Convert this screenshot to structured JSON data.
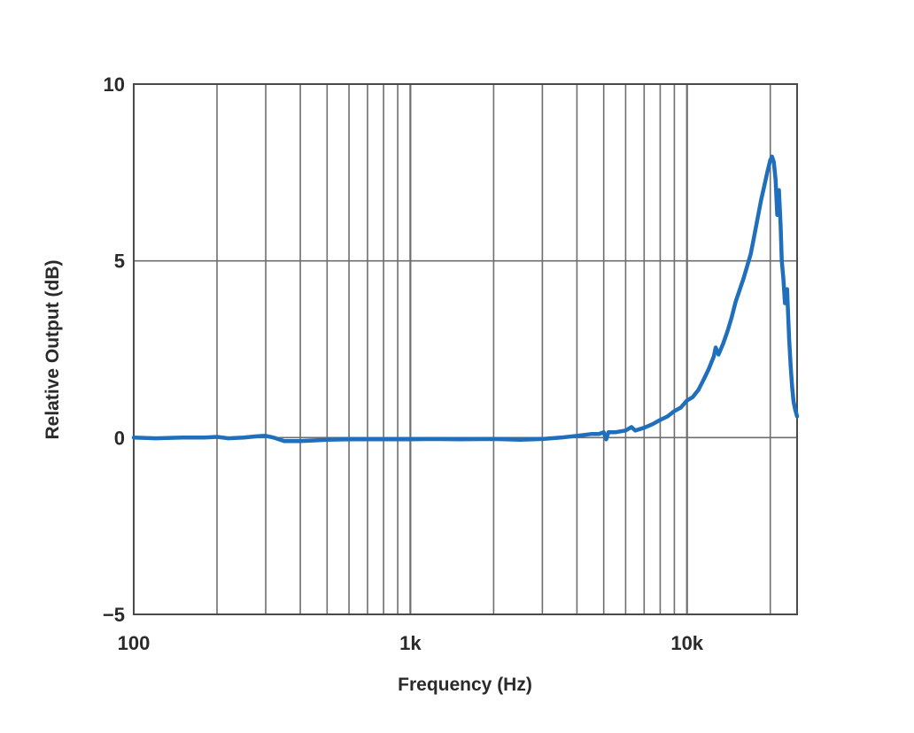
{
  "chart_data": {
    "type": "line",
    "title": "",
    "xlabel": "Frequency (Hz)",
    "ylabel": "Relative Output (dB)",
    "xscale": "log",
    "xlim": [
      100,
      25000
    ],
    "ylim": [
      -5,
      10
    ],
    "grid": true,
    "legend": "none",
    "x_ticks": [
      {
        "value": 100,
        "label": "100"
      },
      {
        "value": 1000,
        "label": "1k"
      },
      {
        "value": 10000,
        "label": "10k"
      }
    ],
    "y_ticks": [
      {
        "value": 10,
        "label": "10"
      },
      {
        "value": 5,
        "label": "5"
      },
      {
        "value": 0,
        "label": "0"
      },
      {
        "value": -5,
        "label": "−5"
      }
    ],
    "colors": {
      "series": "#1f6fbd",
      "grid": "#6e6e6e",
      "frame": "#4a4a4a"
    },
    "series": [
      {
        "x": [
          100,
          120,
          150,
          180,
          200,
          220,
          250,
          280,
          300,
          320,
          350,
          400,
          450,
          500,
          600,
          700,
          800,
          900,
          1000,
          1200,
          1500,
          2000,
          2500,
          3000,
          3500,
          4000,
          4500,
          4800,
          5000,
          5100,
          5200,
          5500,
          6000,
          6300,
          6500,
          7000,
          7500,
          8000,
          8500,
          9000,
          9500,
          10000,
          10500,
          11000,
          11500,
          12000,
          12500,
          12700,
          13000,
          13500,
          14000,
          14500,
          15000,
          16000,
          16500,
          17000,
          17500,
          18000,
          18500,
          19000,
          19500,
          20000,
          20300,
          20600,
          20900,
          21200,
          21500,
          21800,
          22000,
          22300,
          22600,
          23000,
          23400,
          23700,
          24000,
          24300,
          24600,
          25000
        ],
        "y": [
          0.0,
          -0.02,
          0.0,
          0.0,
          0.02,
          -0.02,
          0.0,
          0.04,
          0.05,
          0.0,
          -0.1,
          -0.1,
          -0.08,
          -0.06,
          -0.05,
          -0.05,
          -0.05,
          -0.05,
          -0.05,
          -0.04,
          -0.05,
          -0.04,
          -0.06,
          -0.04,
          0.0,
          0.05,
          0.1,
          0.1,
          0.15,
          -0.05,
          0.15,
          0.15,
          0.2,
          0.3,
          0.2,
          0.28,
          0.38,
          0.5,
          0.6,
          0.75,
          0.85,
          1.05,
          1.15,
          1.35,
          1.65,
          1.95,
          2.3,
          2.55,
          2.35,
          2.65,
          3.0,
          3.4,
          3.85,
          4.5,
          4.85,
          5.2,
          5.7,
          6.2,
          6.7,
          7.1,
          7.5,
          7.85,
          7.95,
          7.8,
          7.3,
          6.3,
          7.0,
          6.0,
          5.0,
          4.5,
          3.8,
          4.2,
          2.8,
          2.0,
          1.4,
          1.0,
          0.8,
          0.6
        ]
      }
    ]
  }
}
